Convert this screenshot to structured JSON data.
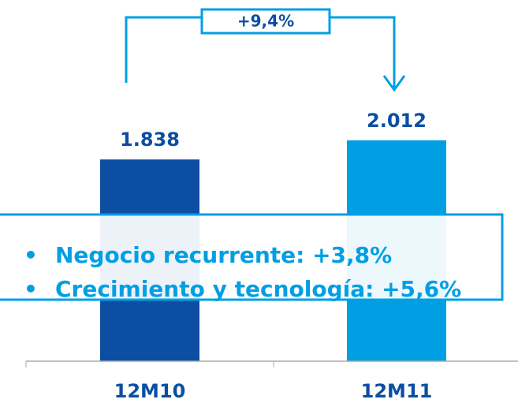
{
  "chart_data": {
    "type": "bar",
    "categories": [
      "12M10",
      "12M11"
    ],
    "values": [
      1838,
      2012
    ],
    "value_labels": [
      "1.838",
      "2.012"
    ],
    "colors": [
      "#0b4ea2",
      "#009fe3"
    ],
    "annotation": "+9,4%",
    "bullets": [
      "Negocio recurrente: +3,8%",
      "Crecimiento y tecnología: +5,6%"
    ]
  }
}
